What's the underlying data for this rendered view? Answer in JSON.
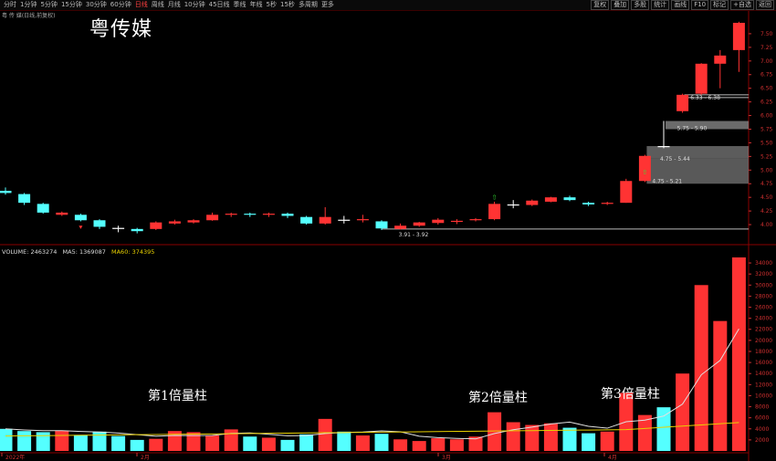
{
  "toolbar": {
    "periods": [
      "分时",
      "1分钟",
      "5分钟",
      "15分钟",
      "30分钟",
      "60分钟",
      "日线",
      "周线",
      "月线",
      "10分钟",
      "45日线",
      "季线",
      "年线",
      "5秒",
      "15秒",
      "多周期",
      "更多"
    ],
    "active_period": "日线",
    "right_buttons": [
      "复权",
      "叠加",
      "多股",
      "统计",
      "画线",
      "F10",
      "标记",
      "+自选",
      "返回"
    ]
  },
  "title_bar": "粤 传 媒(日线,前复权)",
  "stock_name": "粤传媒",
  "volume_header": {
    "volume": "VOLUME: 2463274",
    "ma5": "MA5: 1369087",
    "ma60": "MA60: 374395"
  },
  "colors": {
    "up": "#ff3333",
    "down": "#54ffff",
    "ma5": "#e0e0e0",
    "ma60": "#e8d000",
    "axis": "#d03030"
  },
  "price_axis_labels": [
    "7.50",
    "7.25",
    "7.00",
    "6.75",
    "6.50",
    "6.25",
    "6.00",
    "5.75",
    "5.50",
    "5.25",
    "5.00",
    "4.75",
    "4.50",
    "4.25",
    "4.00"
  ],
  "volume_axis_labels": [
    "34000",
    "32000",
    "30000",
    "28000",
    "26000",
    "24000",
    "22000",
    "20000",
    "18000",
    "16000",
    "14000",
    "12000",
    "10000",
    "8000",
    "6000",
    "4000",
    "2000"
  ],
  "x_ticks": [
    "2022年",
    "2月",
    "3月",
    "4月"
  ],
  "annotations": [
    "第1倍量柱",
    "第2倍量柱",
    "第3倍量柱"
  ],
  "price_labels": [
    "3.91 - 3.92",
    "4.75 - 5.21",
    "4.75 - 5.44",
    "5.75 - 5.90",
    "6.33 - 6.38"
  ],
  "chart_data": {
    "type": "candlestick",
    "candles": [
      {
        "o": 4.62,
        "c": 4.58,
        "h": 4.68,
        "l": 4.55,
        "v": 4000
      },
      {
        "o": 4.56,
        "c": 4.4,
        "h": 4.58,
        "l": 4.36,
        "v": 3600
      },
      {
        "o": 4.38,
        "c": 4.22,
        "h": 4.4,
        "l": 4.2,
        "v": 3400
      },
      {
        "o": 4.18,
        "c": 4.22,
        "h": 4.24,
        "l": 4.16,
        "v": 3700
      },
      {
        "o": 4.18,
        "c": 4.08,
        "h": 4.2,
        "l": 4.06,
        "v": 2900
      },
      {
        "o": 4.08,
        "c": 3.96,
        "h": 4.1,
        "l": 3.92,
        "v": 3500
      },
      {
        "o": 3.94,
        "c": 3.93,
        "h": 3.98,
        "l": 3.86,
        "v": 2700
      },
      {
        "o": 3.92,
        "c": 3.88,
        "h": 3.94,
        "l": 3.84,
        "v": 2000
      },
      {
        "o": 3.92,
        "c": 4.04,
        "h": 4.06,
        "l": 3.9,
        "v": 2200
      },
      {
        "o": 4.02,
        "c": 4.06,
        "h": 4.09,
        "l": 4.0,
        "v": 3600
      },
      {
        "o": 4.04,
        "c": 4.08,
        "h": 4.1,
        "l": 4.02,
        "v": 3400
      },
      {
        "o": 4.08,
        "c": 4.18,
        "h": 4.22,
        "l": 4.07,
        "v": 2800
      },
      {
        "o": 4.18,
        "c": 4.2,
        "h": 4.22,
        "l": 4.14,
        "v": 3900
      },
      {
        "o": 4.2,
        "c": 4.18,
        "h": 4.22,
        "l": 4.14,
        "v": 2600
      },
      {
        "o": 4.18,
        "c": 4.2,
        "h": 4.22,
        "l": 4.14,
        "v": 2400
      },
      {
        "o": 4.2,
        "c": 4.16,
        "h": 4.22,
        "l": 4.12,
        "v": 2000
      },
      {
        "o": 4.14,
        "c": 4.02,
        "h": 4.16,
        "l": 4.0,
        "v": 3000
      },
      {
        "o": 4.02,
        "c": 4.14,
        "h": 4.32,
        "l": 4.0,
        "v": 5800
      },
      {
        "o": 4.09,
        "c": 4.08,
        "h": 4.16,
        "l": 4.02,
        "v": 3500
      },
      {
        "o": 4.08,
        "c": 4.1,
        "h": 4.18,
        "l": 4.04,
        "v": 2800
      },
      {
        "o": 4.06,
        "c": 3.93,
        "h": 4.08,
        "l": 3.9,
        "v": 3100
      },
      {
        "o": 3.92,
        "c": 3.98,
        "h": 4.02,
        "l": 3.91,
        "v": 2100
      },
      {
        "o": 3.98,
        "c": 4.04,
        "h": 4.05,
        "l": 3.96,
        "v": 1800
      },
      {
        "o": 4.03,
        "c": 4.09,
        "h": 4.12,
        "l": 4.0,
        "v": 2300
      },
      {
        "o": 4.05,
        "c": 4.07,
        "h": 4.1,
        "l": 4.01,
        "v": 2100
      },
      {
        "o": 4.08,
        "c": 4.1,
        "h": 4.12,
        "l": 4.06,
        "v": 2600
      },
      {
        "o": 4.1,
        "c": 4.38,
        "h": 4.42,
        "l": 4.08,
        "v": 7000
      },
      {
        "o": 4.36,
        "c": 4.37,
        "h": 4.45,
        "l": 4.3,
        "v": 5200
      },
      {
        "o": 4.36,
        "c": 4.44,
        "h": 4.46,
        "l": 4.34,
        "v": 4700
      },
      {
        "o": 4.42,
        "c": 4.5,
        "h": 4.51,
        "l": 4.41,
        "v": 5000
      },
      {
        "o": 4.5,
        "c": 4.45,
        "h": 4.53,
        "l": 4.43,
        "v": 4200
      },
      {
        "o": 4.4,
        "c": 4.37,
        "h": 4.42,
        "l": 4.34,
        "v": 3200
      },
      {
        "o": 4.38,
        "c": 4.4,
        "h": 4.42,
        "l": 4.36,
        "v": 3500
      },
      {
        "o": 4.4,
        "c": 4.8,
        "h": 4.84,
        "l": 4.4,
        "v": 10500
      },
      {
        "o": 4.8,
        "c": 5.26,
        "h": 5.28,
        "l": 4.78,
        "v": 6500
      },
      {
        "o": 5.44,
        "c": 5.44,
        "h": 5.9,
        "l": 5.4,
        "v": 7900
      },
      {
        "o": 6.08,
        "c": 6.38,
        "h": 6.4,
        "l": 6.05,
        "v": 14000
      },
      {
        "o": 6.4,
        "c": 6.95,
        "h": 6.96,
        "l": 6.38,
        "v": 30000
      },
      {
        "o": 6.95,
        "c": 7.1,
        "h": 7.2,
        "l": 6.5,
        "v": 23500
      },
      {
        "o": 7.2,
        "c": 7.7,
        "h": 7.72,
        "l": 6.8,
        "v": 35000
      }
    ],
    "price_range": [
      3.8,
      7.75
    ],
    "volume_range": [
      0,
      35000
    ]
  }
}
